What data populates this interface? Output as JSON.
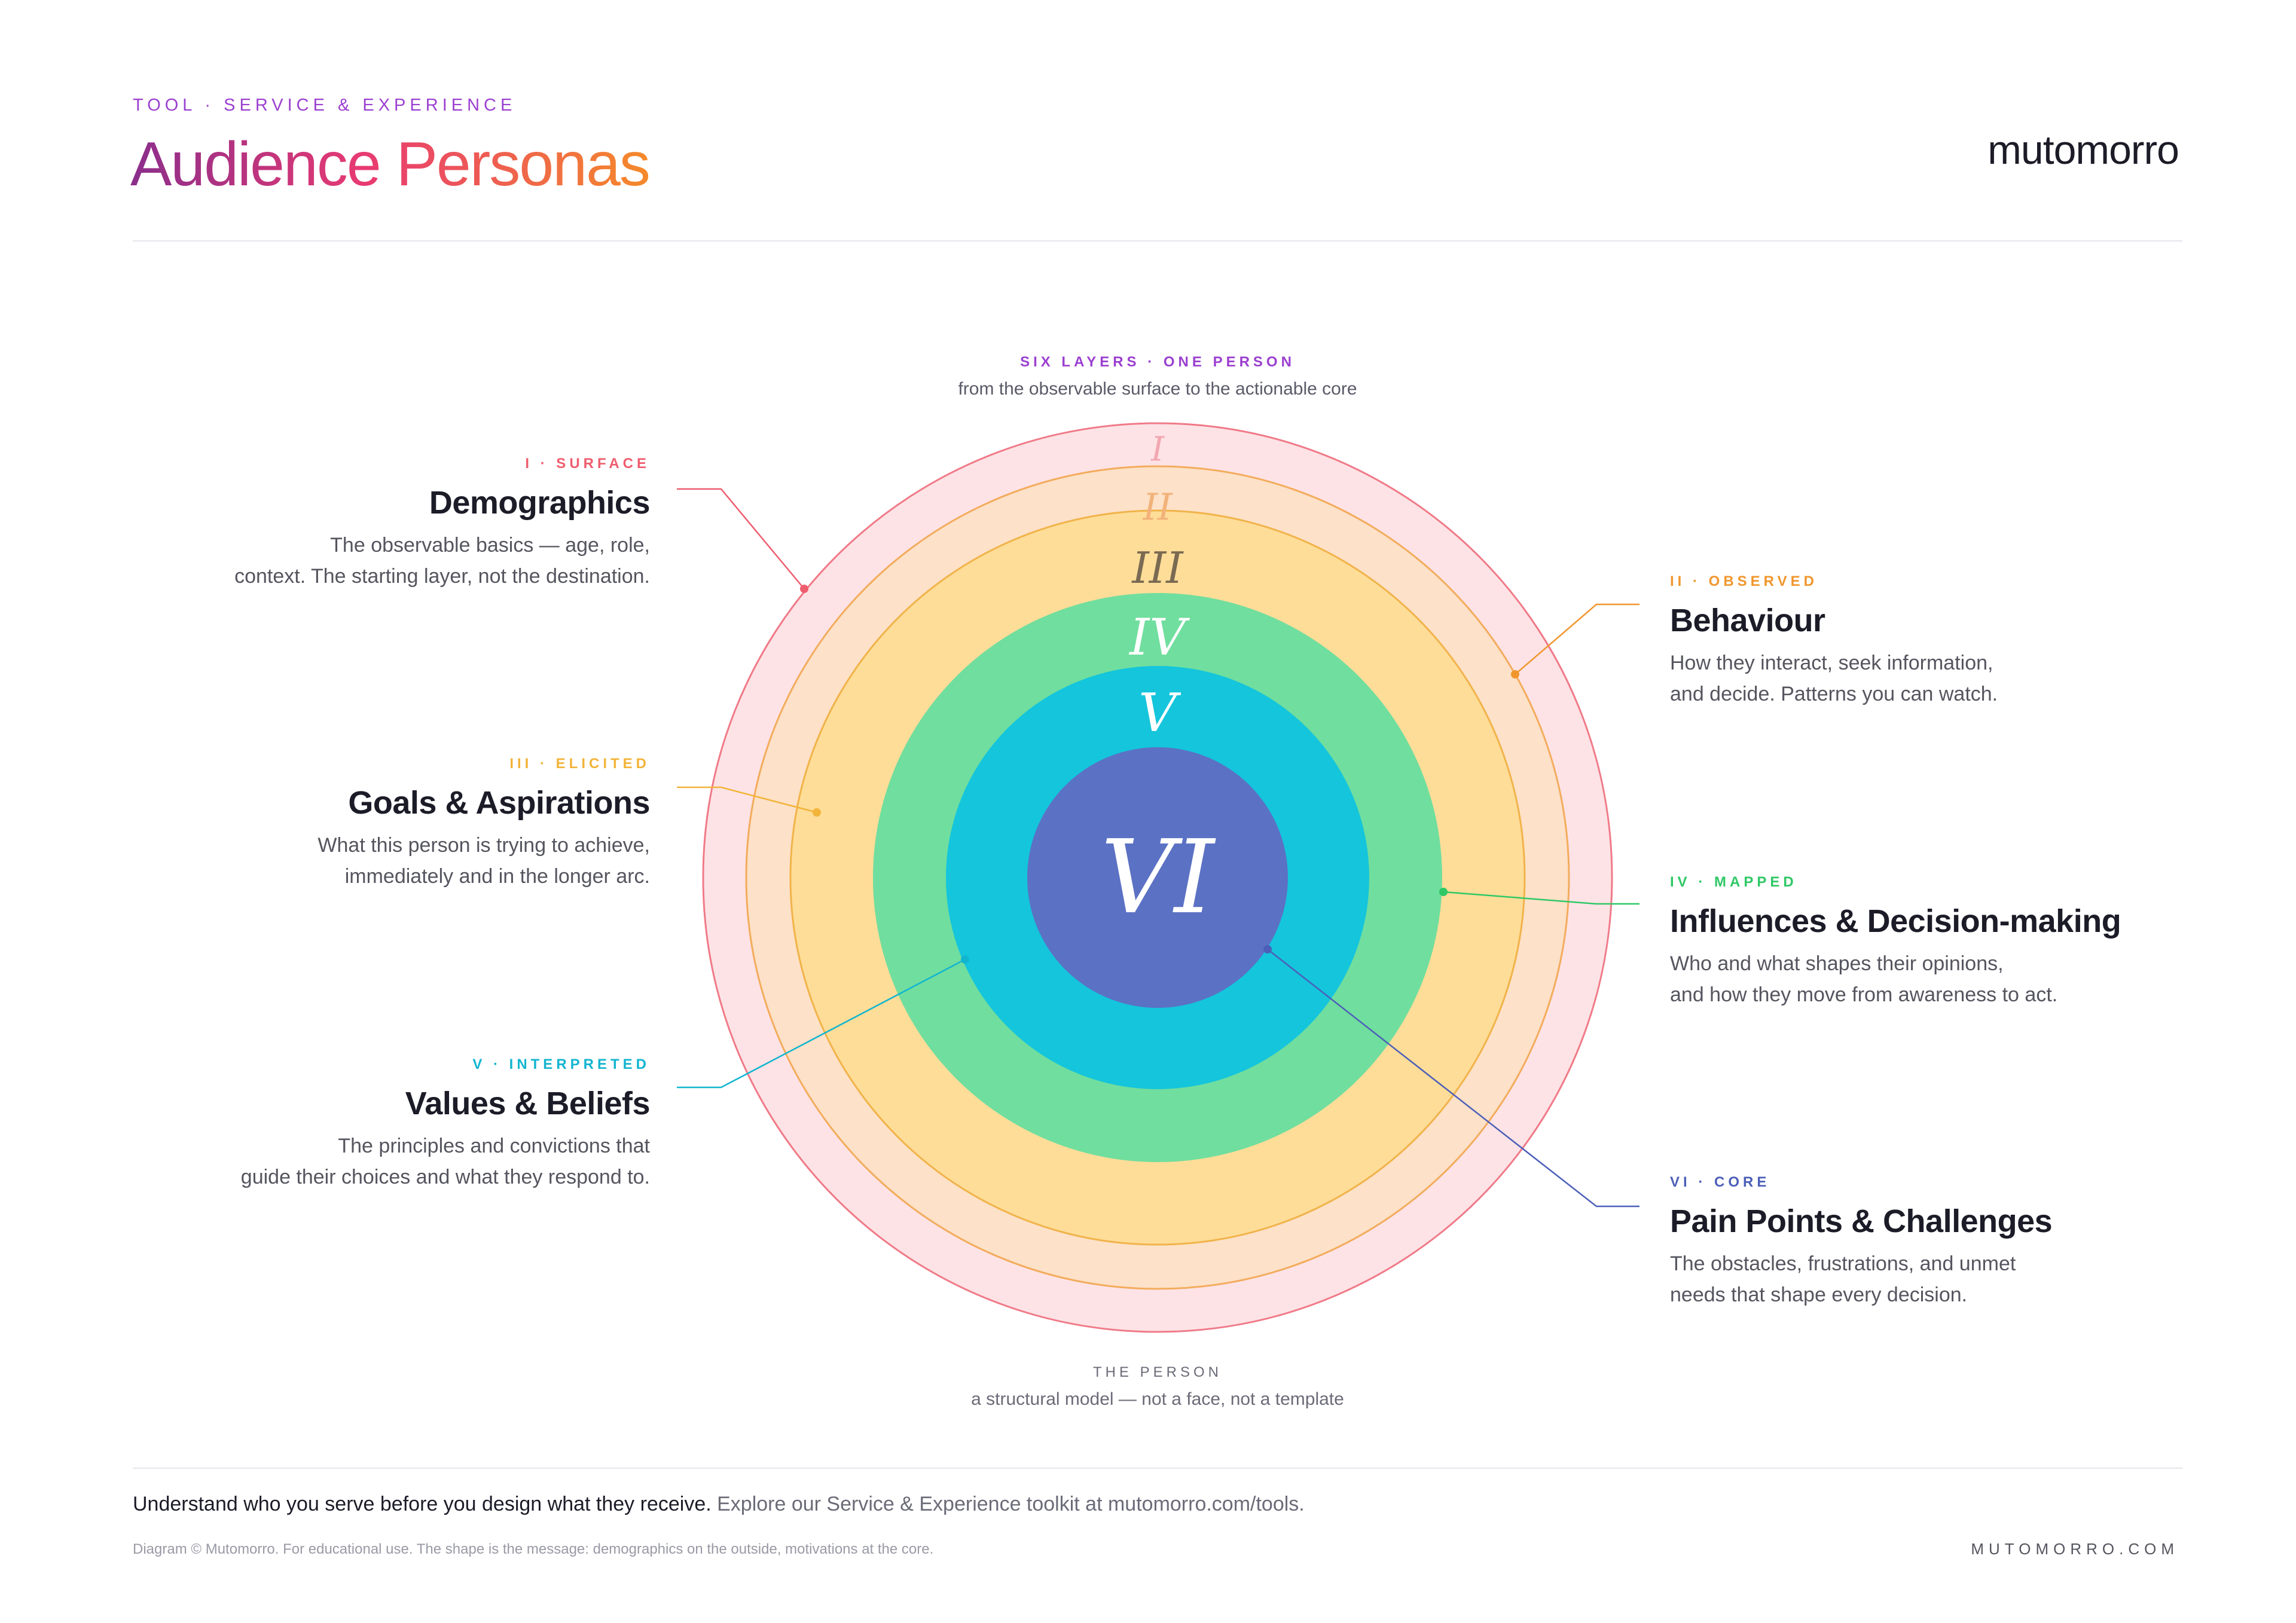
{
  "header": {
    "eyebrow": "TOOL · SERVICE & EXPERIENCE",
    "title": "Audience Personas",
    "brand": "mutomorro"
  },
  "diagram_top": {
    "kicker": "SIX LAYERS · ONE PERSON",
    "subtitle": "from the observable surface to the actionable core"
  },
  "rings": [
    {
      "numeral": "I",
      "fill": "#fde3e6",
      "stroke": "#f07a88",
      "numeral_color": "#f2a7b0"
    },
    {
      "numeral": "II",
      "fill": "#fde1c8",
      "stroke": "#f3ac5d",
      "numeral_color": "#f2b27a"
    },
    {
      "numeral": "III",
      "fill": "#fedd98",
      "stroke": "#f1b34a",
      "numeral_color": "#7a6a52"
    },
    {
      "numeral": "IV",
      "fill": "#70de9e",
      "stroke": "#70de9e",
      "numeral_color": "#ffffff"
    },
    {
      "numeral": "V",
      "fill": "#14c5dc",
      "stroke": "#14c5dc",
      "numeral_color": "#ffffff"
    },
    {
      "numeral": "VI",
      "fill": "#5b71c4",
      "stroke": "#5b71c4",
      "numeral_color": "#ffffff"
    }
  ],
  "layers": [
    {
      "kicker": "I · SURFACE",
      "color": "#ee5d6e",
      "title": "Demographics",
      "desc1": "The observable basics — age, role,",
      "desc2": "context. The starting layer, not the destination."
    },
    {
      "kicker": "II · OBSERVED",
      "color": "#f0962d",
      "title": "Behaviour",
      "desc1": "How they interact, seek information,",
      "desc2": "and decide. Patterns you can watch."
    },
    {
      "kicker": "III · ELICITED",
      "color": "#f2b43a",
      "title": "Goals & Aspirations",
      "desc1": "What this person is trying to achieve,",
      "desc2": "immediately and in the longer arc."
    },
    {
      "kicker": "IV · MAPPED",
      "color": "#2fc866",
      "title": "Influences & Decision-making",
      "desc1": "Who and what shapes their opinions,",
      "desc2": "and how they move from awareness to act."
    },
    {
      "kicker": "V · INTERPRETED",
      "color": "#12b5cf",
      "title": "Values & Beliefs",
      "desc1": "The principles and convictions that",
      "desc2": "guide their choices and what they respond to."
    },
    {
      "kicker": "VI · CORE",
      "color": "#4c5fb8",
      "title": "Pain Points & Challenges",
      "desc1": "The obstacles, frustrations, and unmet",
      "desc2": "needs that shape every decision."
    }
  ],
  "diagram_bottom": {
    "kicker": "THE PERSON",
    "subtitle": "a structural model — not a face, not a template"
  },
  "footer": {
    "lead": "Understand who you serve before you design what they receive.",
    "rest": " Explore our Service & Experience toolkit at mutomorro.com/tools.",
    "fine": "Diagram © Mutomorro. For educational use. The shape is the message: demographics on the outside, motivations at the core.",
    "brand": "MUTOMORRO.COM"
  }
}
